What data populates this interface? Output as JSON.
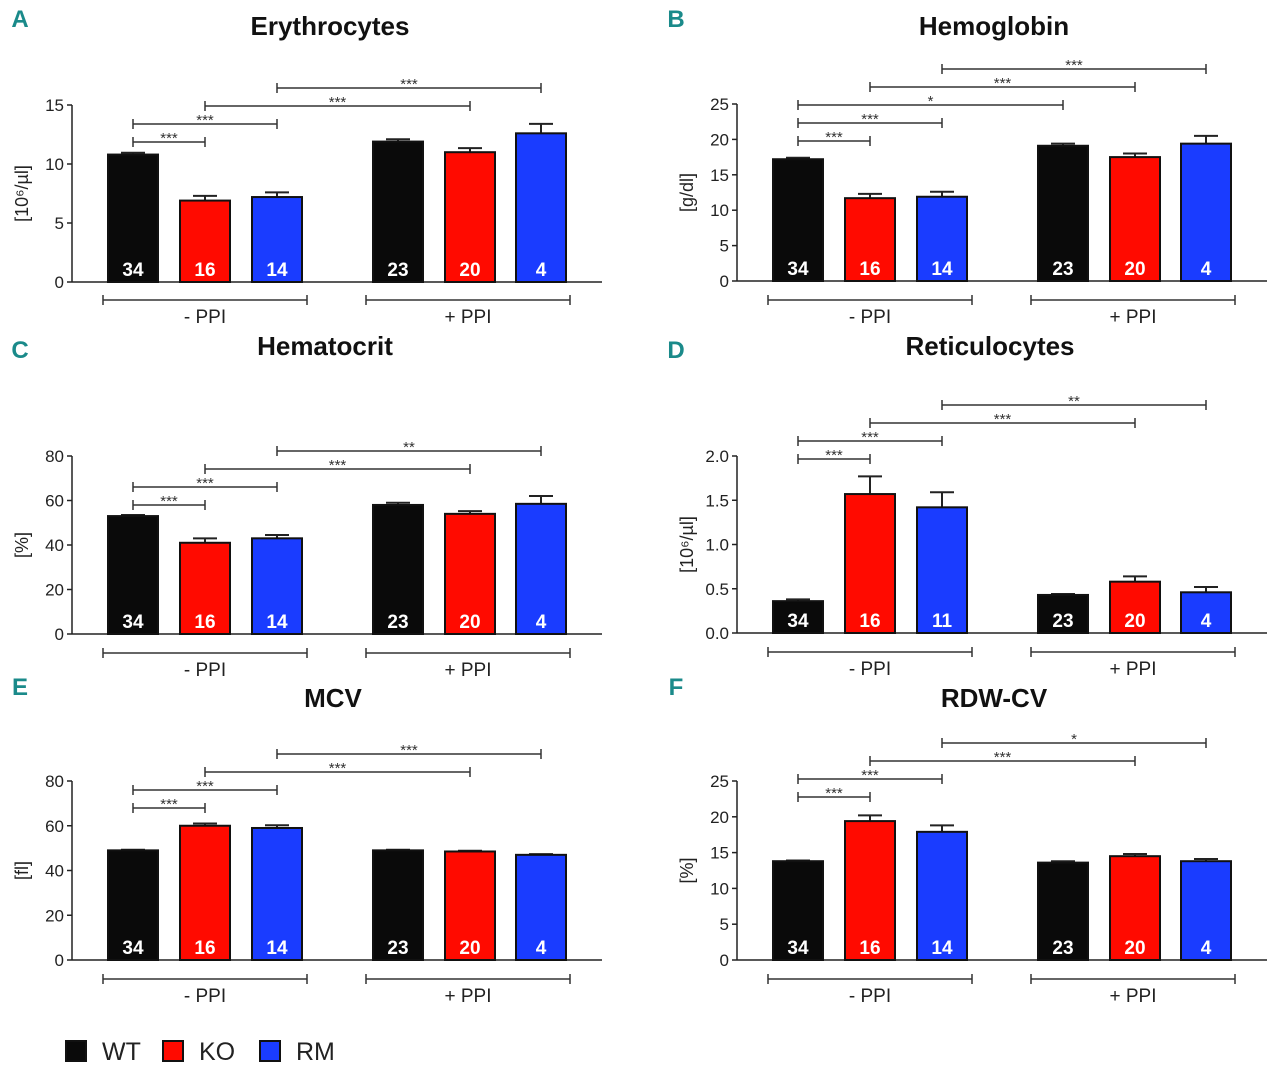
{
  "colors": {
    "WT": "#0a0a0a",
    "KO": "#ff0a00",
    "RM": "#1a3cff"
  },
  "legend": [
    {
      "key": "WT",
      "label": "WT"
    },
    {
      "key": "KO",
      "label": "KO"
    },
    {
      "key": "RM",
      "label": "RM"
    }
  ],
  "chart_data": [
    {
      "letter": "A",
      "type": "bar",
      "title": "Erythrocytes",
      "ylabel": "[10⁶/µl]",
      "ylim": [
        0,
        15
      ],
      "yticks": [
        "0",
        "5",
        "10",
        "15"
      ],
      "groups": [
        "- PPI",
        "+ PPI"
      ],
      "categories": [
        "WT -PPI",
        "KO -PPI",
        "RM -PPI",
        "WT +PPI",
        "KO +PPI",
        "RM +PPI"
      ],
      "values": [
        10.8,
        6.9,
        7.2,
        11.9,
        11.0,
        12.6
      ],
      "errors": [
        0.15,
        0.4,
        0.4,
        0.2,
        0.35,
        0.8
      ],
      "n": [
        "34",
        "16",
        "14",
        "23",
        "20",
        "4"
      ],
      "brackets": [
        {
          "from": 0,
          "to": 1,
          "label": "***"
        },
        {
          "from": 0,
          "to": 2,
          "label": "***"
        },
        {
          "from": 1,
          "to": 4,
          "label": "***"
        },
        {
          "from": 2,
          "to": 5,
          "label": "***"
        }
      ]
    },
    {
      "letter": "B",
      "type": "bar",
      "title": "Hemoglobin",
      "ylabel": "[g/dl]",
      "ylim": [
        0,
        25
      ],
      "yticks": [
        "0",
        "5",
        "10",
        "15",
        "20",
        "25"
      ],
      "groups": [
        "- PPI",
        "+ PPI"
      ],
      "categories": [
        "WT -PPI",
        "KO -PPI",
        "RM -PPI",
        "WT +PPI",
        "KO +PPI",
        "RM +PPI"
      ],
      "values": [
        17.2,
        11.7,
        11.9,
        19.1,
        17.5,
        19.4
      ],
      "errors": [
        0.2,
        0.6,
        0.7,
        0.3,
        0.5,
        1.1
      ],
      "n": [
        "34",
        "16",
        "14",
        "23",
        "20",
        "4"
      ],
      "brackets": [
        {
          "from": 0,
          "to": 1,
          "label": "***"
        },
        {
          "from": 0,
          "to": 2,
          "label": "***"
        },
        {
          "from": 0,
          "to": 3,
          "label": "*"
        },
        {
          "from": 1,
          "to": 4,
          "label": "***"
        },
        {
          "from": 2,
          "to": 5,
          "label": "***"
        }
      ]
    },
    {
      "letter": "C",
      "type": "bar",
      "title": "Hematocrit",
      "ylabel": "[%]",
      "ylim": [
        0,
        80
      ],
      "yticks": [
        "0",
        "20",
        "40",
        "60",
        "80"
      ],
      "groups": [
        "- PPI",
        "+ PPI"
      ],
      "categories": [
        "WT -PPI",
        "KO -PPI",
        "RM -PPI",
        "WT +PPI",
        "KO +PPI",
        "RM +PPI"
      ],
      "values": [
        53,
        41,
        43,
        58,
        54,
        58.5
      ],
      "errors": [
        0.5,
        2,
        1.5,
        1,
        1.2,
        3.5
      ],
      "n": [
        "34",
        "16",
        "14",
        "23",
        "20",
        "4"
      ],
      "brackets": [
        {
          "from": 0,
          "to": 1,
          "label": "***"
        },
        {
          "from": 0,
          "to": 2,
          "label": "***"
        },
        {
          "from": 1,
          "to": 4,
          "label": "***"
        },
        {
          "from": 2,
          "to": 5,
          "label": "**"
        }
      ]
    },
    {
      "letter": "D",
      "type": "bar",
      "title": "Reticulocytes",
      "ylabel": "[10⁶/µl]",
      "ylim": [
        0,
        2
      ],
      "yticks": [
        "0.0",
        "0.5",
        "1.0",
        "1.5",
        "2.0"
      ],
      "groups": [
        "- PPI",
        "+ PPI"
      ],
      "categories": [
        "WT -PPI",
        "KO -PPI",
        "RM -PPI",
        "WT +PPI",
        "KO +PPI",
        "RM +PPI"
      ],
      "values": [
        0.36,
        1.57,
        1.42,
        0.43,
        0.58,
        0.46
      ],
      "errors": [
        0.02,
        0.2,
        0.17,
        0.01,
        0.06,
        0.06
      ],
      "n": [
        "34",
        "16",
        "11",
        "23",
        "20",
        "4"
      ],
      "brackets": [
        {
          "from": 0,
          "to": 1,
          "label": "***"
        },
        {
          "from": 0,
          "to": 2,
          "label": "***"
        },
        {
          "from": 1,
          "to": 4,
          "label": "***"
        },
        {
          "from": 2,
          "to": 5,
          "label": "**"
        }
      ]
    },
    {
      "letter": "E",
      "type": "bar",
      "title": "MCV",
      "ylabel": "[fl]",
      "ylim": [
        0,
        80
      ],
      "yticks": [
        "0",
        "20",
        "40",
        "60",
        "80"
      ],
      "groups": [
        "- PPI",
        "+ PPI"
      ],
      "categories": [
        "WT -PPI",
        "KO -PPI",
        "RM -PPI",
        "WT +PPI",
        "KO +PPI",
        "RM +PPI"
      ],
      "values": [
        49,
        60,
        59,
        49,
        48.5,
        47
      ],
      "errors": [
        0.3,
        1,
        1.2,
        0.3,
        0.3,
        0.3
      ],
      "n": [
        "34",
        "16",
        "14",
        "23",
        "20",
        "4"
      ],
      "brackets": [
        {
          "from": 0,
          "to": 1,
          "label": "***"
        },
        {
          "from": 0,
          "to": 2,
          "label": "***"
        },
        {
          "from": 1,
          "to": 4,
          "label": "***"
        },
        {
          "from": 2,
          "to": 5,
          "label": "***"
        }
      ]
    },
    {
      "letter": "F",
      "type": "bar",
      "title": "RDW-CV",
      "ylabel": "[%]",
      "ylim": [
        0,
        25
      ],
      "yticks": [
        "0",
        "5",
        "10",
        "15",
        "20",
        "25"
      ],
      "groups": [
        "- PPI",
        "+ PPI"
      ],
      "categories": [
        "WT -PPI",
        "KO -PPI",
        "RM -PPI",
        "WT +PPI",
        "KO +PPI",
        "RM +PPI"
      ],
      "values": [
        13.8,
        19.4,
        17.9,
        13.6,
        14.5,
        13.8
      ],
      "errors": [
        0.1,
        0.8,
        0.9,
        0.2,
        0.3,
        0.3
      ],
      "n": [
        "34",
        "16",
        "14",
        "23",
        "20",
        "4"
      ],
      "brackets": [
        {
          "from": 0,
          "to": 1,
          "label": "***"
        },
        {
          "from": 0,
          "to": 2,
          "label": "***"
        },
        {
          "from": 1,
          "to": 4,
          "label": "***"
        },
        {
          "from": 2,
          "to": 5,
          "label": "*"
        }
      ]
    }
  ]
}
